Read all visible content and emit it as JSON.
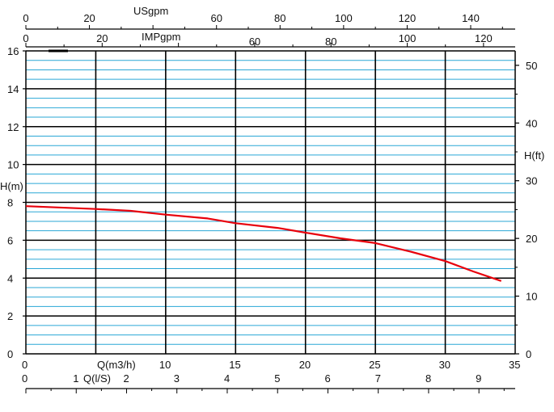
{
  "chart_data": {
    "type": "line",
    "title": "",
    "xlabel": "Q(m3/h)",
    "ylabel": "H(m)",
    "xlim": [
      0,
      35
    ],
    "ylim": [
      0,
      16
    ],
    "x_ticks": [
      "0",
      "10",
      "15",
      "20",
      "25",
      "30",
      "35"
    ],
    "y_ticks": [
      "0",
      "2",
      "4",
      "6",
      "8",
      "10",
      "12",
      "14",
      "16"
    ],
    "secondary_axes": {
      "right": {
        "label": "H(ft)",
        "ticks": [
          "0",
          "10",
          "20",
          "30",
          "40",
          "50"
        ],
        "lim": [
          0,
          52.5
        ]
      },
      "top_usgpm": {
        "label": "USgpm",
        "ticks": [
          "0",
          "20",
          "60",
          "80",
          "100",
          "120",
          "140"
        ],
        "lim": [
          0,
          154
        ]
      },
      "top_impgpm": {
        "label": "IMPgpm",
        "ticks": [
          "0",
          "20",
          "60",
          "80",
          "100",
          "120"
        ],
        "lim": [
          0,
          128.3
        ]
      },
      "bottom_ls": {
        "label": "Q(l/S)",
        "ticks": [
          "0",
          "1",
          "2",
          "3",
          "4",
          "5",
          "6",
          "7",
          "8",
          "9"
        ],
        "lim": [
          0,
          9.72
        ]
      }
    },
    "grid": true,
    "series": [
      {
        "color": "#e8000b",
        "x": [
          0,
          5,
          7.5,
          10,
          13,
          15,
          18,
          20,
          22.5,
          25,
          27.5,
          30,
          32,
          34
        ],
        "y": [
          7.8,
          7.65,
          7.55,
          7.35,
          7.15,
          6.9,
          6.65,
          6.4,
          6.1,
          5.85,
          5.4,
          4.9,
          4.35,
          3.85
        ]
      }
    ]
  }
}
